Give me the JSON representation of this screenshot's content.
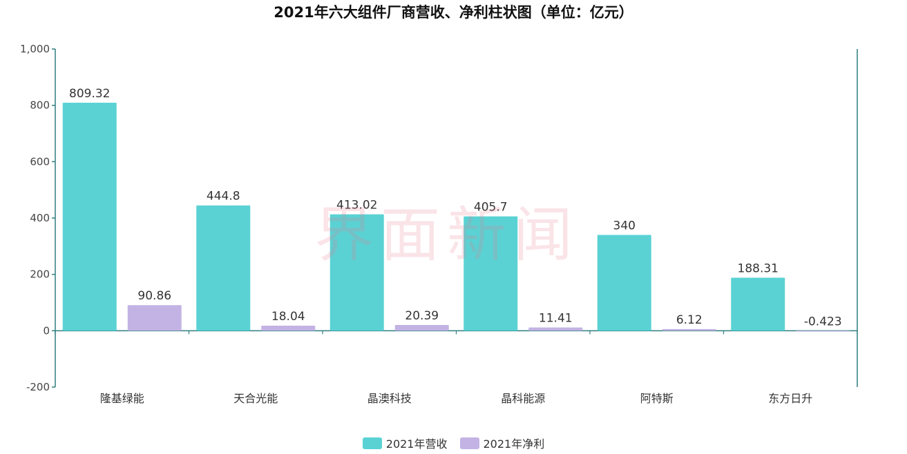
{
  "watermark": "界面新闻",
  "chart_data": {
    "type": "bar",
    "title": "2021年六大组件厂商营收、净利柱状图（单位：亿元）",
    "categories": [
      "隆基绿能",
      "天合光能",
      "晶澳科技",
      "晶科能源",
      "阿特斯",
      "东方日升"
    ],
    "series": [
      {
        "name": "2021年营收",
        "color": "#5ad2d4",
        "values": [
          809.32,
          444.8,
          413.02,
          405.7,
          340,
          188.31
        ],
        "labels": [
          "809.32",
          "444.8",
          "413.02",
          "405.7",
          "340",
          "188.31"
        ]
      },
      {
        "name": "2021年净利",
        "color": "#c3b3e4",
        "values": [
          90.86,
          18.04,
          20.39,
          11.41,
          6.12,
          -0.423
        ],
        "labels": [
          "90.86",
          "18.04",
          "20.39",
          "11.41",
          "6.12",
          "-0.423"
        ]
      }
    ],
    "ylim": [
      -200,
      1000
    ],
    "yticks": [
      -200,
      0,
      200,
      400,
      600,
      800,
      1000
    ],
    "ytick_labels": [
      "-200",
      "0",
      "200",
      "400",
      "600",
      "800",
      "1,000"
    ],
    "xlabel": "",
    "ylabel": "",
    "grid": false,
    "legend": "bottom-center",
    "axis_color": "#2e7d7e"
  }
}
